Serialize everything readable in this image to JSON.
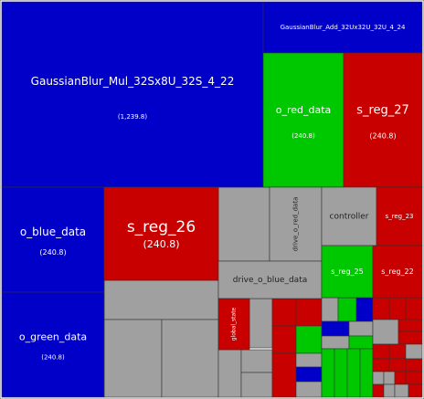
{
  "chart_data": {
    "type": "treemap",
    "colors": {
      "blue": "#0000c8",
      "red": "#c80000",
      "green": "#00c800",
      "gray": "#a0a0a0"
    },
    "labeled_items": [
      {
        "name": "GaussianBlur_Mul_32Sx8U_32S_4_22",
        "value_label": "(1,239.8)",
        "color": "blue"
      },
      {
        "name": "GaussianBlur_Add_32Ux32U_32U_4_24",
        "color": "blue"
      },
      {
        "name": "o_red_data",
        "value_label": "(240.8)",
        "color": "green"
      },
      {
        "name": "s_reg_27",
        "value_label": "(240.8)",
        "color": "red"
      },
      {
        "name": "o_blue_data",
        "value_label": "(240.8)",
        "color": "blue"
      },
      {
        "name": "s_reg_26",
        "value_label": "(240.8)",
        "color": "red"
      },
      {
        "name": "o_green_data",
        "value_label": "(240.8)",
        "color": "blue"
      },
      {
        "name": "drive_o_red_data",
        "color": "gray"
      },
      {
        "name": "controller",
        "color": "gray"
      },
      {
        "name": "s_reg_23",
        "color": "red"
      },
      {
        "name": "drive_o_blue_data",
        "color": "gray"
      },
      {
        "name": "s_reg_25",
        "color": "green"
      },
      {
        "name": "s_reg_22",
        "color": "red"
      },
      {
        "name": "global_state",
        "color": "red"
      }
    ]
  }
}
